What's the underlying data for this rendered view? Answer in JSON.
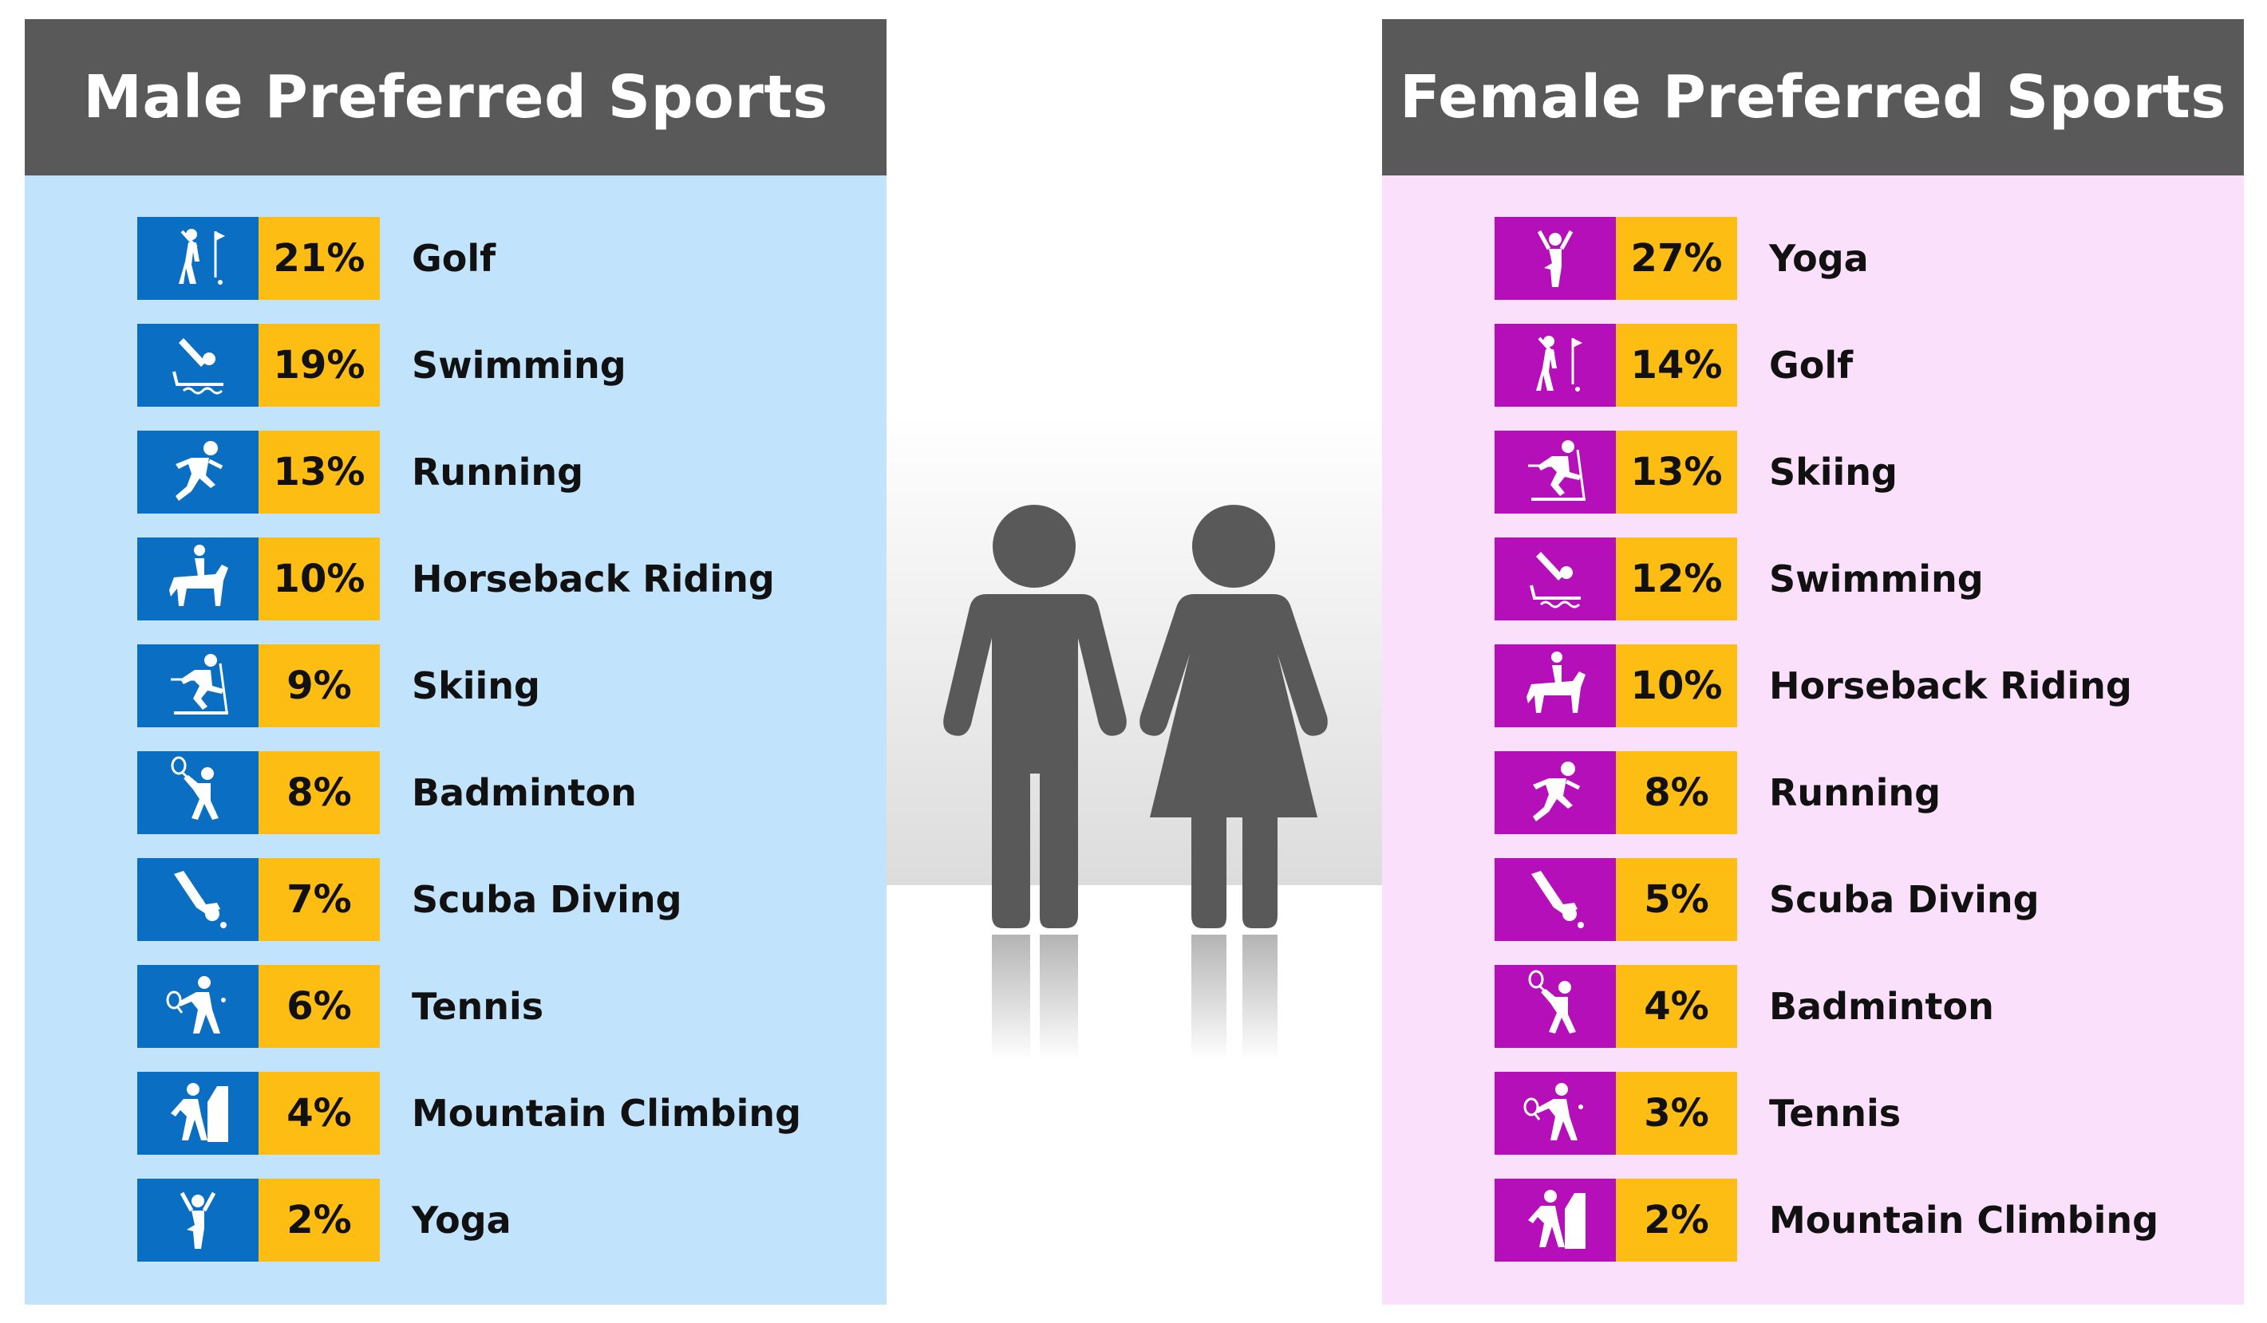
{
  "colors": {
    "male_panel_bg": "#c1e3fb",
    "female_panel_bg": "#fae0fb",
    "header_bg": "#595959",
    "male_icon_bg": "#0a6fc2",
    "female_icon_bg": "#b50fb9",
    "percent_bg": "#fdbd12",
    "figure": "#595959"
  },
  "male": {
    "title": "Male Preferred Sports",
    "items": [
      {
        "icon": "golf-icon",
        "percent": "21%",
        "label": "Golf"
      },
      {
        "icon": "swimming-icon",
        "percent": "19%",
        "label": "Swimming"
      },
      {
        "icon": "running-icon",
        "percent": "13%",
        "label": "Running"
      },
      {
        "icon": "horseback-riding-icon",
        "percent": "10%",
        "label": "Horseback Riding"
      },
      {
        "icon": "skiing-icon",
        "percent": "9%",
        "label": "Skiing"
      },
      {
        "icon": "badminton-icon",
        "percent": "8%",
        "label": "Badminton"
      },
      {
        "icon": "scuba-diving-icon",
        "percent": "7%",
        "label": "Scuba Diving"
      },
      {
        "icon": "tennis-icon",
        "percent": "6%",
        "label": "Tennis"
      },
      {
        "icon": "mountain-climbing-icon",
        "percent": "4%",
        "label": "Mountain Climbing"
      },
      {
        "icon": "yoga-icon",
        "percent": "2%",
        "label": "Yoga"
      }
    ]
  },
  "female": {
    "title": "Female Preferred Sports",
    "items": [
      {
        "icon": "yoga-icon",
        "percent": "27%",
        "label": "Yoga"
      },
      {
        "icon": "golf-icon",
        "percent": "14%",
        "label": "Golf"
      },
      {
        "icon": "skiing-icon",
        "percent": "13%",
        "label": "Skiing"
      },
      {
        "icon": "swimming-icon",
        "percent": "12%",
        "label": "Swimming"
      },
      {
        "icon": "horseback-riding-icon",
        "percent": "10%",
        "label": "Horseback Riding"
      },
      {
        "icon": "running-icon",
        "percent": "8%",
        "label": "Running"
      },
      {
        "icon": "scuba-diving-icon",
        "percent": "5%",
        "label": "Scuba Diving"
      },
      {
        "icon": "badminton-icon",
        "percent": "4%",
        "label": "Badminton"
      },
      {
        "icon": "tennis-icon",
        "percent": "3%",
        "label": "Tennis"
      },
      {
        "icon": "mountain-climbing-icon",
        "percent": "2%",
        "label": "Mountain Climbing"
      }
    ]
  },
  "chart_data": [
    {
      "type": "table",
      "title": "Male Preferred Sports",
      "categories": [
        "Golf",
        "Swimming",
        "Running",
        "Horseback Riding",
        "Skiing",
        "Badminton",
        "Scuba Diving",
        "Tennis",
        "Mountain Climbing",
        "Yoga"
      ],
      "values": [
        21,
        19,
        13,
        10,
        9,
        8,
        7,
        6,
        4,
        2
      ],
      "unit": "%"
    },
    {
      "type": "table",
      "title": "Female Preferred Sports",
      "categories": [
        "Yoga",
        "Golf",
        "Skiing",
        "Swimming",
        "Horseback Riding",
        "Running",
        "Scuba Diving",
        "Badminton",
        "Tennis",
        "Mountain Climbing"
      ],
      "values": [
        27,
        14,
        13,
        12,
        10,
        8,
        5,
        4,
        3,
        2
      ],
      "unit": "%"
    }
  ]
}
